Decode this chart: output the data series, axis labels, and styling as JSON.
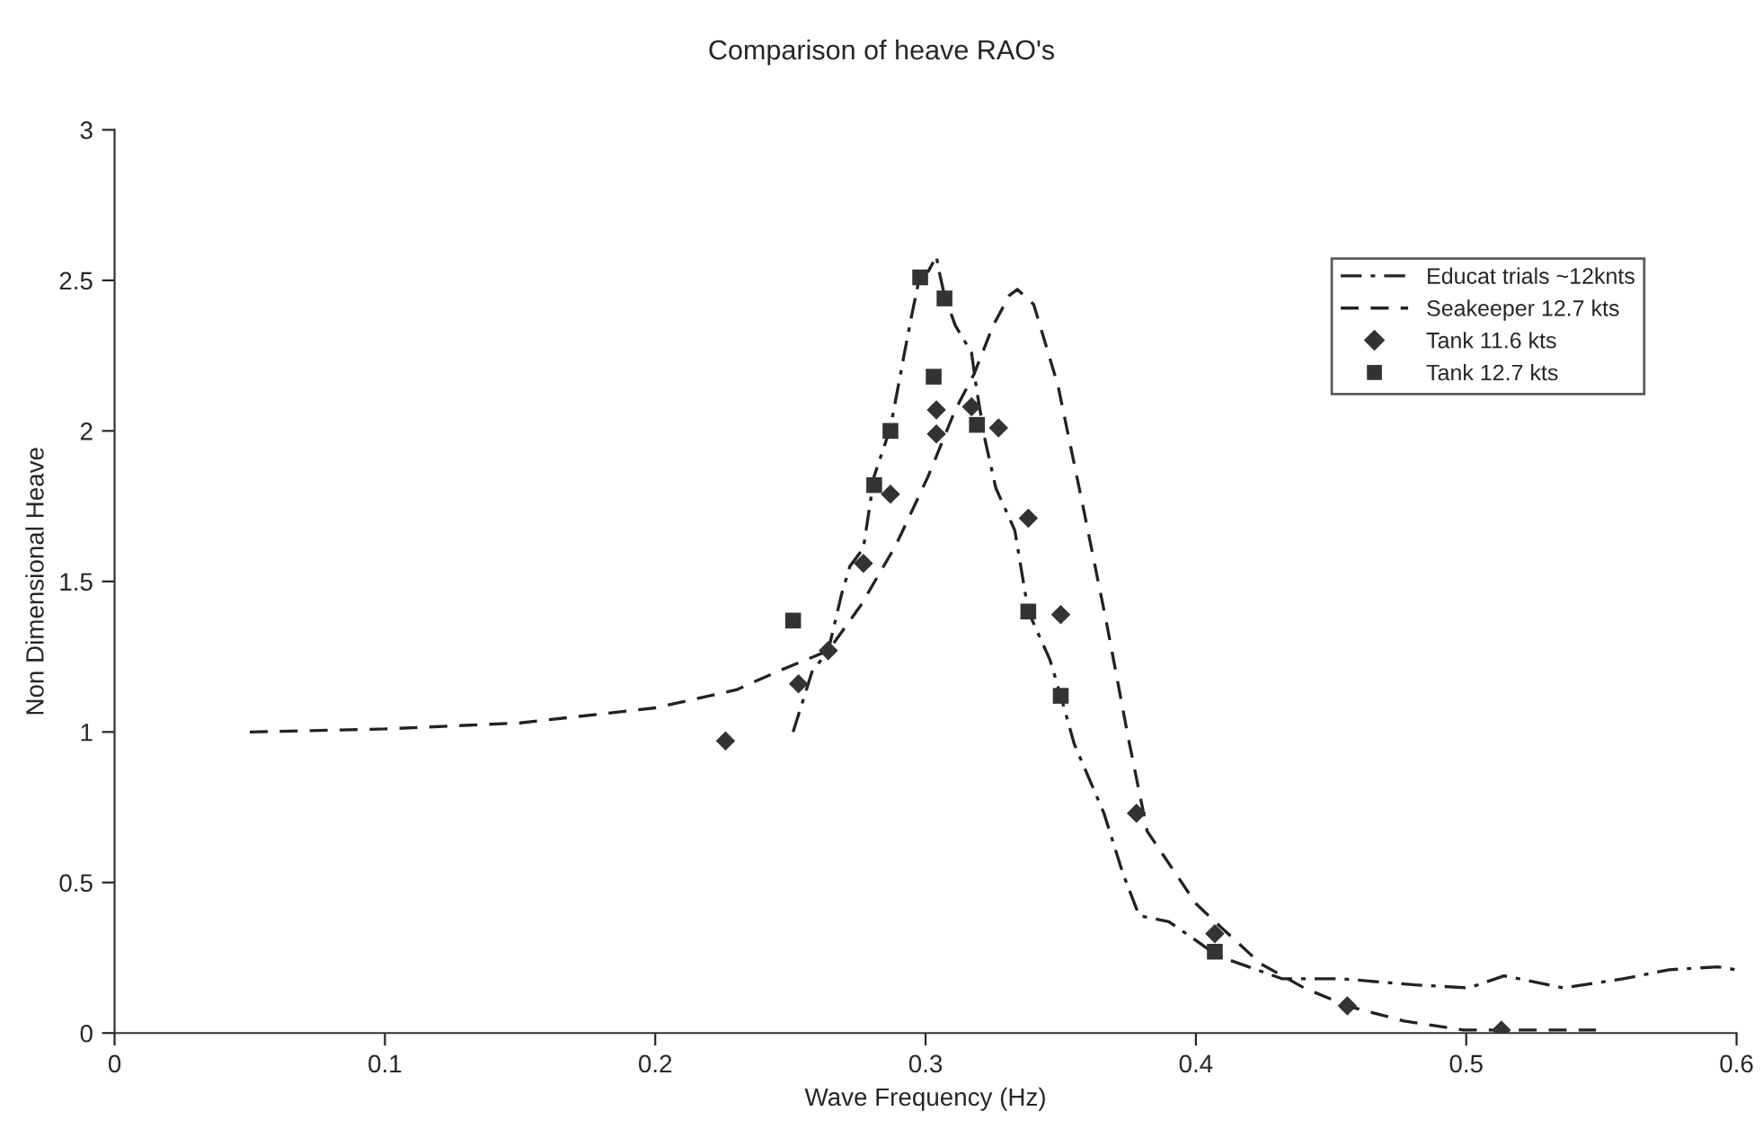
{
  "chart_data": {
    "type": "line",
    "title": "Comparison of heave RAO's",
    "xlabel": "Wave Frequency (Hz)",
    "ylabel": "Non Dimensional Heave",
    "xlim": [
      0,
      0.6
    ],
    "xticks": [
      0,
      0.1,
      0.2,
      0.3,
      0.4,
      0.5,
      0.6
    ],
    "ylim": [
      0,
      3
    ],
    "yticks": [
      0,
      0.5,
      1,
      1.5,
      2,
      2.5,
      3
    ],
    "grid": false,
    "legend": "top right",
    "series": [
      {
        "name": "Educat trials ~12knts",
        "line_style": "dashdot",
        "marker": "none",
        "color": "#222222",
        "x": [
          0.251,
          0.258,
          0.264,
          0.269,
          0.272,
          0.277,
          0.281,
          0.287,
          0.292,
          0.295,
          0.298,
          0.301,
          0.304,
          0.305,
          0.307,
          0.311,
          0.317,
          0.319,
          0.322,
          0.326,
          0.333,
          0.338,
          0.346,
          0.35,
          0.355,
          0.366,
          0.373,
          0.379,
          0.39,
          0.406,
          0.41,
          0.432,
          0.454,
          0.481,
          0.501,
          0.514,
          0.536,
          0.558,
          0.575,
          0.593,
          0.6
        ],
        "values": [
          1.0,
          1.2,
          1.27,
          1.46,
          1.55,
          1.61,
          1.85,
          2.01,
          2.25,
          2.39,
          2.52,
          2.53,
          2.58,
          2.53,
          2.45,
          2.35,
          2.26,
          2.13,
          1.97,
          1.81,
          1.67,
          1.4,
          1.24,
          1.12,
          0.96,
          0.73,
          0.53,
          0.39,
          0.37,
          0.27,
          0.25,
          0.18,
          0.18,
          0.16,
          0.15,
          0.19,
          0.15,
          0.18,
          0.21,
          0.22,
          0.21
        ]
      },
      {
        "name": "Seakeeper 12.7 kts",
        "line_style": "dashed",
        "marker": "none",
        "color": "#222222",
        "x": [
          0.05,
          0.1,
          0.15,
          0.2,
          0.23,
          0.245,
          0.264,
          0.276,
          0.289,
          0.301,
          0.311,
          0.318,
          0.325,
          0.331,
          0.334,
          0.34,
          0.349,
          0.358,
          0.367,
          0.375,
          0.382,
          0.4,
          0.407,
          0.424,
          0.44,
          0.456,
          0.477,
          0.499,
          0.515,
          0.548
        ],
        "values": [
          1.0,
          1.01,
          1.03,
          1.08,
          1.14,
          1.2,
          1.27,
          1.42,
          1.62,
          1.85,
          2.07,
          2.19,
          2.35,
          2.45,
          2.47,
          2.42,
          2.15,
          1.76,
          1.36,
          0.98,
          0.67,
          0.43,
          0.37,
          0.23,
          0.15,
          0.09,
          0.04,
          0.01,
          0.01,
          0.01
        ]
      },
      {
        "name": "Tank 11.6 kts",
        "type": "scatter",
        "marker": "diamond",
        "color": "#333333",
        "x": [
          0.226,
          0.253,
          0.264,
          0.277,
          0.287,
          0.304,
          0.304,
          0.317,
          0.327,
          0.338,
          0.35,
          0.378,
          0.407,
          0.456,
          0.513
        ],
        "values": [
          0.97,
          1.16,
          1.27,
          1.56,
          1.79,
          2.07,
          1.99,
          2.08,
          2.01,
          1.71,
          1.39,
          0.73,
          0.33,
          0.09,
          0.01
        ]
      },
      {
        "name": "Tank 12.7 kts",
        "type": "scatter",
        "marker": "square",
        "color": "#333333",
        "x": [
          0.251,
          0.281,
          0.287,
          0.298,
          0.303,
          0.307,
          0.319,
          0.338,
          0.35,
          0.407
        ],
        "values": [
          1.37,
          1.82,
          2.0,
          2.51,
          2.18,
          2.44,
          2.02,
          1.4,
          1.12,
          0.27
        ]
      }
    ]
  }
}
